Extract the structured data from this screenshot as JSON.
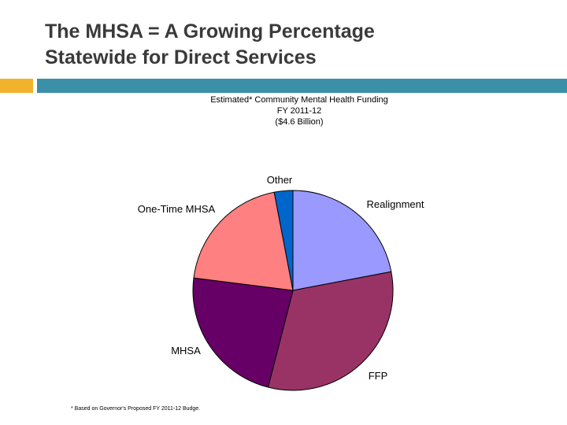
{
  "slide": {
    "title_line1": "The MHSA = A Growing Percentage",
    "title_line2": "Statewide for Direct Services",
    "footnote": "* Based on Governor's Proposed FY 2011-12 Budge."
  },
  "chart_data": {
    "type": "pie",
    "title_lines": [
      "Estimated* Community Mental Health Funding",
      "FY 2011-12",
      "($4.6 Billion)"
    ],
    "slices": [
      {
        "label": "Realignment",
        "value": 22,
        "color": "#9999ff"
      },
      {
        "label": "FFP",
        "value": 32,
        "color": "#993366"
      },
      {
        "label": "MHSA",
        "value": 23,
        "color": "#660066"
      },
      {
        "label": "One-Time MHSA",
        "value": 20,
        "color": "#ff8080"
      },
      {
        "label": "Other",
        "value": 3,
        "color": "#0066cc"
      }
    ]
  }
}
